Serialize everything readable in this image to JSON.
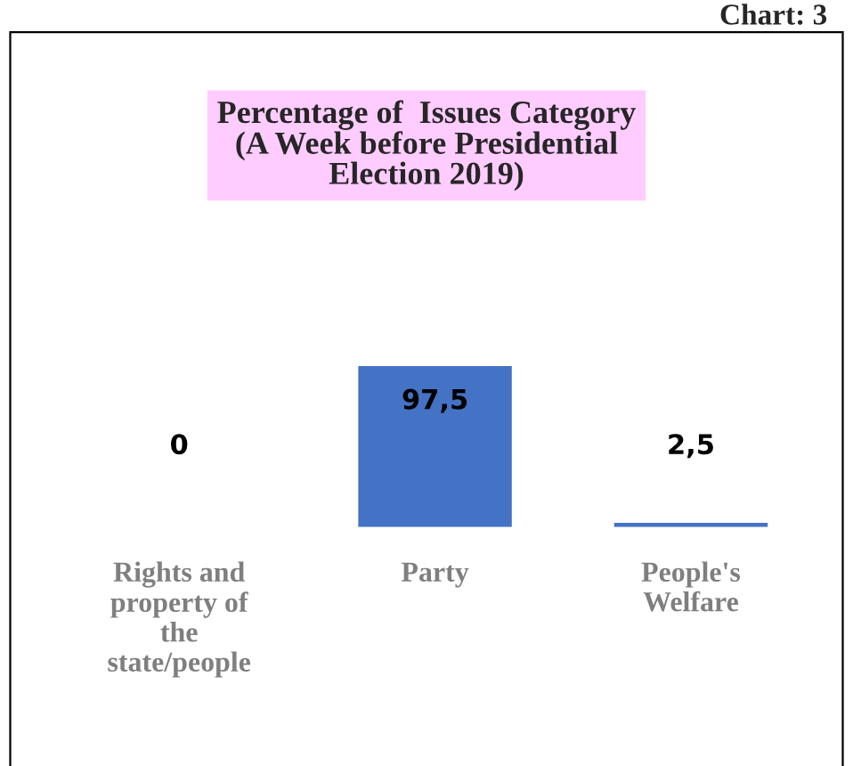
{
  "chart_data": {
    "type": "bar",
    "title": "Percentage of  Issues Category\n(A Week before Presidential\nElection 2019)",
    "categories": [
      "Rights and\nproperty of\nthe\nstate/people",
      "Party",
      "People's\nWelfare"
    ],
    "values": [
      0,
      97.5,
      2.5
    ],
    "value_labels": [
      "0",
      "97,5",
      "2,5"
    ],
    "color": "#4472c4",
    "annotations": [
      "Chart: 3"
    ],
    "grid": false,
    "legend": false
  }
}
